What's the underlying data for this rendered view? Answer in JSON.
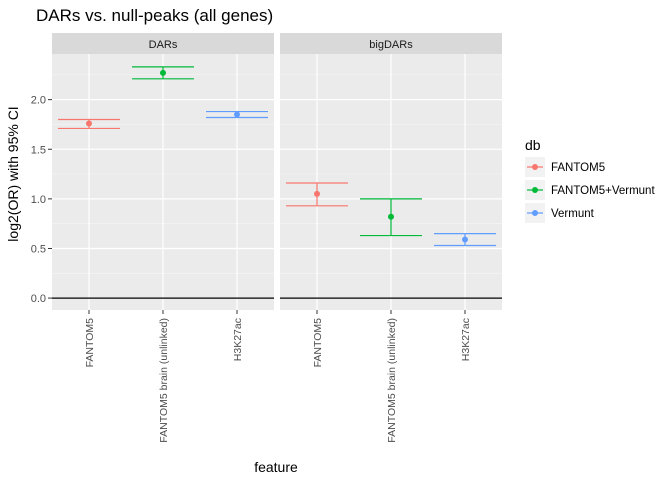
{
  "chart_data": {
    "type": "scatter",
    "title": "DARs vs. null-peaks (all genes)",
    "xlabel": "feature",
    "ylabel": "log2(OR) with 95% CI",
    "ylim": [
      -0.12,
      2.46
    ],
    "y_ticks": [
      0.0,
      0.5,
      1.0,
      1.5,
      2.0
    ],
    "y_tick_labels": [
      "0.0",
      "0.5",
      "1.0",
      "1.5",
      "2.0"
    ],
    "reference_line_y": 0,
    "grid": true,
    "legend": {
      "title": "db",
      "placement": "right",
      "entries": [
        "FANTOM5",
        "FANTOM5+Vermunt",
        "Vermunt"
      ]
    },
    "colors": {
      "FANTOM5": "#F8766D",
      "FANTOM5+Vermunt": "#00BA38",
      "Vermunt": "#619CFF"
    },
    "categories": [
      "FANTOM5",
      "FANTOM5 brain (unlinked)",
      "H3K27ac"
    ],
    "facets": [
      {
        "label": "DARs",
        "points": [
          {
            "feature": "FANTOM5",
            "db": "FANTOM5",
            "estimate": 1.76,
            "lower": 1.71,
            "upper": 1.8
          },
          {
            "feature": "FANTOM5 brain (unlinked)",
            "db": "FANTOM5+Vermunt",
            "estimate": 2.27,
            "lower": 2.21,
            "upper": 2.33
          },
          {
            "feature": "H3K27ac",
            "db": "Vermunt",
            "estimate": 1.85,
            "lower": 1.82,
            "upper": 1.88
          }
        ]
      },
      {
        "label": "bigDARs",
        "points": [
          {
            "feature": "FANTOM5",
            "db": "FANTOM5",
            "estimate": 1.05,
            "lower": 0.93,
            "upper": 1.16
          },
          {
            "feature": "FANTOM5 brain (unlinked)",
            "db": "FANTOM5+Vermunt",
            "estimate": 0.82,
            "lower": 0.63,
            "upper": 1.0
          },
          {
            "feature": "H3K27ac",
            "db": "Vermunt",
            "estimate": 0.59,
            "lower": 0.53,
            "upper": 0.65
          }
        ]
      }
    ]
  }
}
